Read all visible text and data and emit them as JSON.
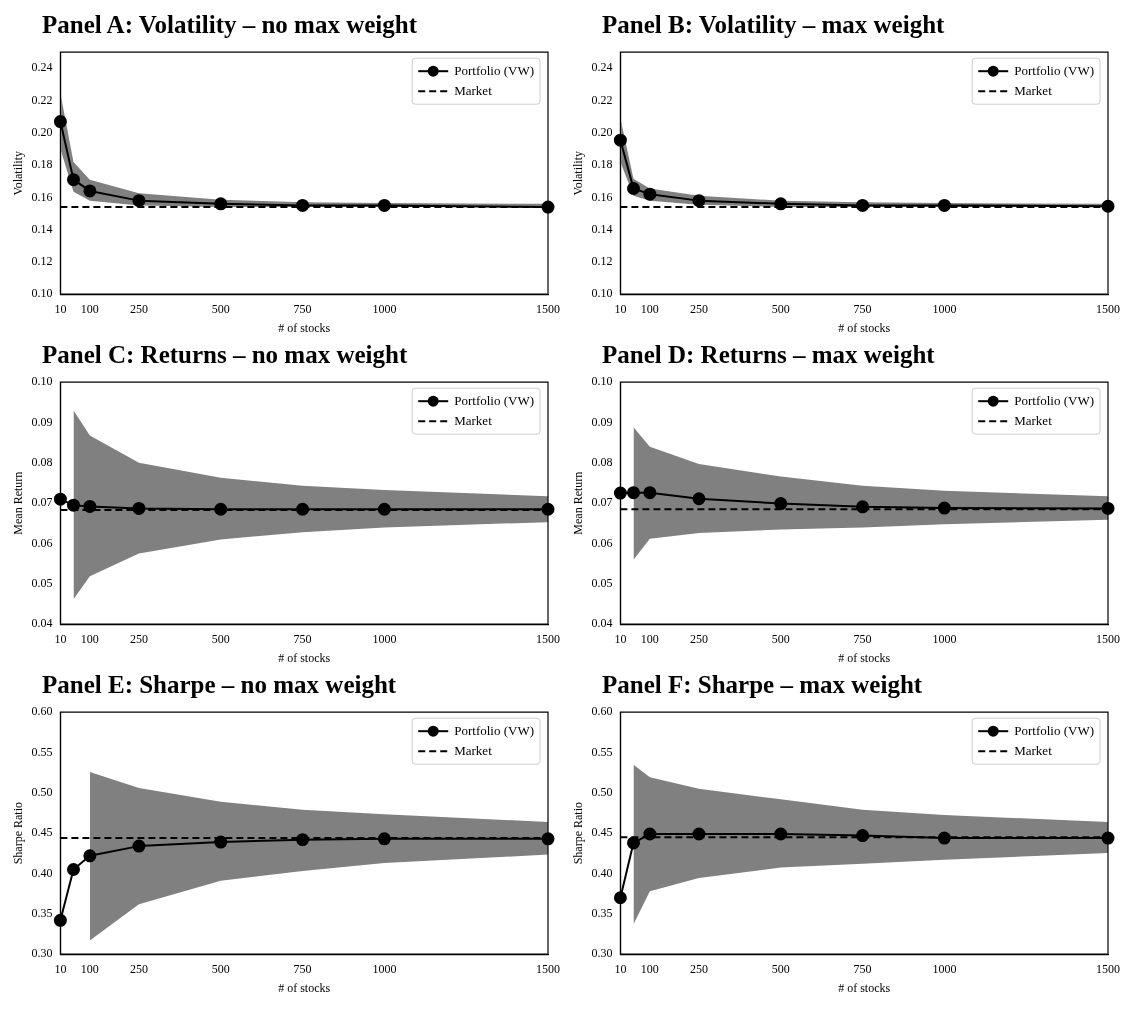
{
  "chart_data": [
    {
      "type": "line",
      "title": "Panel A: Volatility – no max weight",
      "xlabel": "# of stocks",
      "ylabel": "Volatility",
      "x": [
        10,
        50,
        100,
        250,
        500,
        750,
        1000,
        1500
      ],
      "xlim": [
        10,
        1500
      ],
      "xticks": [
        10,
        100,
        250,
        500,
        750,
        1000,
        1500
      ],
      "ylim": [
        0.1,
        0.25
      ],
      "yticks": [
        {
          "value": 0.1,
          "label": "0.10"
        },
        0.12,
        0.14,
        0.16,
        0.18,
        {
          "value": 0.2,
          "label": "0.20"
        },
        0.22,
        0.24
      ],
      "legend": "top right",
      "series": [
        {
          "name": "Portfolio (VW)",
          "color": "#000000",
          "marker": "circle",
          "values": [
            0.207,
            0.171,
            0.164,
            0.158,
            0.156,
            0.155,
            0.155,
            0.154
          ],
          "lower": [
            0.19,
            0.1635,
            0.158,
            0.155,
            0.154,
            0.154,
            0.154,
            0.154
          ],
          "upper": [
            0.2245,
            0.182,
            0.171,
            0.1625,
            0.1585,
            0.157,
            0.1565,
            0.156
          ]
        },
        {
          "name": "Market",
          "color": "#000000",
          "marker": "none",
          "line_style": "dashed",
          "values": [
            0.154,
            0.154,
            0.154,
            0.154,
            0.154,
            0.154,
            0.154,
            0.154
          ]
        }
      ]
    },
    {
      "type": "line",
      "title": "Panel B: Volatility – max weight",
      "xlabel": "# of stocks",
      "ylabel": "Volatility",
      "x": [
        10,
        50,
        100,
        250,
        500,
        750,
        1000,
        1500
      ],
      "xlim": [
        10,
        1500
      ],
      "xticks": [
        10,
        100,
        250,
        500,
        750,
        1000,
        1500
      ],
      "ylim": [
        0.1,
        0.25
      ],
      "yticks": [
        {
          "value": 0.1,
          "label": "0.10"
        },
        0.12,
        0.14,
        0.16,
        0.18,
        {
          "value": 0.2,
          "label": "0.20"
        },
        0.22,
        0.24
      ],
      "legend": "top right",
      "series": [
        {
          "name": "Portfolio (VW)",
          "color": "#000000",
          "marker": "circle",
          "values": [
            0.1955,
            0.1655,
            0.162,
            0.158,
            0.156,
            0.155,
            0.155,
            0.1545
          ],
          "lower": [
            0.182,
            0.161,
            0.158,
            0.1555,
            0.154,
            0.154,
            0.154,
            0.154
          ],
          "upper": [
            0.209,
            0.1715,
            0.1655,
            0.161,
            0.158,
            0.157,
            0.1565,
            0.156
          ]
        },
        {
          "name": "Market",
          "color": "#000000",
          "marker": "none",
          "line_style": "dashed",
          "values": [
            0.154,
            0.154,
            0.154,
            0.154,
            0.154,
            0.154,
            0.154,
            0.154
          ]
        }
      ]
    },
    {
      "type": "line",
      "title": "Panel C: Returns – no max weight",
      "xlabel": "# of stocks",
      "ylabel": "Mean Return",
      "x": [
        10,
        50,
        100,
        250,
        500,
        750,
        1000,
        1500
      ],
      "xlim": [
        10,
        1500
      ],
      "xticks": [
        10,
        100,
        250,
        500,
        750,
        1000,
        1500
      ],
      "ylim": [
        0.04,
        0.1
      ],
      "yticks": [
        0.04,
        0.05,
        0.06,
        0.07,
        0.08,
        0.09,
        {
          "value": 0.1,
          "label": "0.10"
        }
      ],
      "legend": "top right",
      "series": [
        {
          "name": "Portfolio (VW)",
          "color": "#000000",
          "marker": "circle",
          "values": [
            0.071,
            0.0695,
            0.0692,
            0.0687,
            0.0685,
            0.0685,
            0.0685,
            0.0685
          ],
          "lower": [
            null,
            0.0462,
            0.0519,
            0.0575,
            0.061,
            0.0628,
            0.064,
            0.0653
          ],
          "upper": [
            null,
            0.093,
            0.0868,
            0.08,
            0.0763,
            0.0743,
            0.0733,
            0.0717
          ]
        },
        {
          "name": "Market",
          "color": "#000000",
          "marker": "none",
          "line_style": "dashed",
          "values": [
            0.0683,
            0.0683,
            0.0683,
            0.0683,
            0.0683,
            0.0683,
            0.0683,
            0.0683
          ]
        }
      ]
    },
    {
      "type": "line",
      "title": "Panel D: Returns – max weight",
      "xlabel": "# of stocks",
      "ylabel": "Mean Return",
      "x": [
        10,
        50,
        100,
        250,
        500,
        750,
        1000,
        1500
      ],
      "xlim": [
        10,
        1500
      ],
      "xticks": [
        10,
        100,
        250,
        500,
        750,
        1000,
        1500
      ],
      "ylim": [
        0.04,
        0.1
      ],
      "yticks": [
        0.04,
        0.05,
        0.06,
        0.07,
        0.08,
        0.09,
        {
          "value": 0.1,
          "label": "0.10"
        }
      ],
      "legend": "top right",
      "series": [
        {
          "name": "Portfolio (VW)",
          "color": "#000000",
          "marker": "circle",
          "values": [
            0.0725,
            0.0726,
            0.0726,
            0.0711,
            0.0699,
            0.0691,
            0.0688,
            0.0687
          ],
          "lower": [
            null,
            0.056,
            0.0612,
            0.0626,
            0.0635,
            0.064,
            0.0648,
            0.0659
          ],
          "upper": [
            null,
            0.0888,
            0.084,
            0.0797,
            0.0766,
            0.0743,
            0.0731,
            0.0717
          ]
        },
        {
          "name": "Market",
          "color": "#000000",
          "marker": "none",
          "line_style": "dashed",
          "values": [
            0.0685,
            0.0685,
            0.0685,
            0.0685,
            0.0685,
            0.0685,
            0.0685,
            0.0685
          ]
        }
      ]
    },
    {
      "type": "line",
      "title": "Panel E: Sharpe – no max weight",
      "xlabel": "# of stocks",
      "ylabel": "Sharpe Ratio",
      "x": [
        10,
        50,
        100,
        250,
        500,
        750,
        1000,
        1500
      ],
      "xlim": [
        10,
        1500
      ],
      "xticks": [
        10,
        100,
        250,
        500,
        750,
        1000,
        1500
      ],
      "ylim": [
        0.3,
        0.6
      ],
      "yticks": [
        {
          "value": 0.3,
          "label": "0.30"
        },
        0.35,
        {
          "value": 0.4,
          "label": "0.40"
        },
        0.45,
        {
          "value": 0.5,
          "label": "0.50"
        },
        0.55,
        {
          "value": 0.6,
          "label": "0.60"
        }
      ],
      "legend": "top right",
      "series": [
        {
          "name": "Portfolio (VW)",
          "color": "#000000",
          "marker": "circle",
          "values": [
            0.342,
            0.405,
            0.422,
            0.434,
            0.439,
            0.442,
            0.443,
            0.443
          ],
          "lower": [
            null,
            null,
            0.317,
            0.362,
            0.391,
            0.403,
            0.413,
            0.4235
          ],
          "upper": [
            null,
            null,
            0.526,
            0.506,
            0.489,
            0.479,
            0.4735,
            0.464
          ]
        },
        {
          "name": "Market",
          "color": "#000000",
          "marker": "none",
          "line_style": "dashed",
          "values": [
            0.444,
            0.444,
            0.444,
            0.444,
            0.444,
            0.444,
            0.444,
            0.444
          ]
        }
      ]
    },
    {
      "type": "line",
      "title": "Panel F: Sharpe – max weight",
      "xlabel": "# of stocks",
      "ylabel": "Sharpe Ratio",
      "x": [
        10,
        50,
        100,
        250,
        500,
        750,
        1000,
        1500
      ],
      "xlim": [
        10,
        1500
      ],
      "xticks": [
        10,
        100,
        250,
        500,
        750,
        1000,
        1500
      ],
      "ylim": [
        0.3,
        0.6
      ],
      "yticks": [
        {
          "value": 0.3,
          "label": "0.30"
        },
        0.35,
        {
          "value": 0.4,
          "label": "0.40"
        },
        0.45,
        {
          "value": 0.5,
          "label": "0.50"
        },
        0.55,
        {
          "value": 0.6,
          "label": "0.60"
        }
      ],
      "legend": "top right",
      "series": [
        {
          "name": "Portfolio (VW)",
          "color": "#000000",
          "marker": "circle",
          "values": [
            0.37,
            0.438,
            0.449,
            0.449,
            0.449,
            0.447,
            0.444,
            0.444
          ],
          "lower": [
            null,
            0.337,
            0.378,
            0.3945,
            0.4075,
            0.412,
            0.417,
            0.4255
          ],
          "upper": [
            null,
            0.535,
            0.5195,
            0.505,
            0.492,
            0.479,
            0.4725,
            0.464
          ]
        },
        {
          "name": "Market",
          "color": "#000000",
          "marker": "none",
          "line_style": "dashed",
          "values": [
            0.445,
            0.445,
            0.445,
            0.445,
            0.445,
            0.445,
            0.445,
            0.445
          ]
        }
      ]
    }
  ]
}
